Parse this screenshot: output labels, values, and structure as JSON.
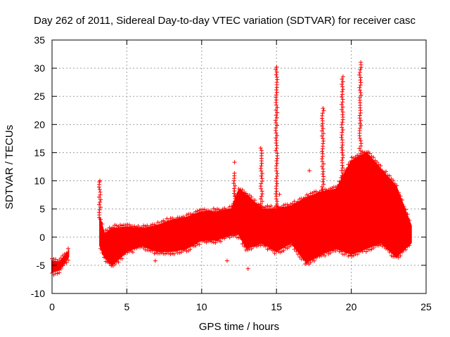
{
  "chart_data": {
    "type": "scatter",
    "title": "Day 262 of 2011, Sidereal Day-to-day VTEC variation (SDTVAR) for receiver casc",
    "xlabel": "GPS time / hours",
    "ylabel": "SDTVAR / TECUs",
    "xlim": [
      0,
      25
    ],
    "ylim": [
      -10,
      35
    ],
    "x_ticks": [
      0,
      5,
      10,
      15,
      20,
      25
    ],
    "y_ticks": [
      -10,
      -5,
      0,
      5,
      10,
      15,
      20,
      25,
      30,
      35
    ],
    "grid": true,
    "marker": "+",
    "series": [
      {
        "name": "SDTVAR",
        "color": "#ff0000",
        "band": [
          [
            0.0,
            -6.2,
            -4.2
          ],
          [
            0.5,
            -5.8,
            -4.5
          ],
          [
            1.1,
            -3.5,
            -2.5
          ],
          [
            3.2,
            -1.5,
            3.5
          ],
          [
            3.5,
            -3.5,
            0.5
          ],
          [
            4.0,
            -5.0,
            1.5
          ],
          [
            5.0,
            -2.5,
            1.8
          ],
          [
            6.0,
            -1.5,
            1.5
          ],
          [
            7.0,
            -2.5,
            2.0
          ],
          [
            8.0,
            -2.5,
            3.0
          ],
          [
            9.0,
            -2.0,
            3.5
          ],
          [
            10.0,
            -0.5,
            4.5
          ],
          [
            11.0,
            -0.5,
            4.5
          ],
          [
            12.0,
            0.5,
            5.0
          ],
          [
            12.5,
            0.5,
            8.5
          ],
          [
            13.0,
            -2.0,
            7.5
          ],
          [
            14.0,
            -1.0,
            5.0
          ],
          [
            15.0,
            -2.5,
            5.0
          ],
          [
            16.0,
            -1.0,
            5.5
          ],
          [
            17.0,
            -4.5,
            7.0
          ],
          [
            18.0,
            -3.0,
            8.0
          ],
          [
            19.0,
            -2.0,
            8.5
          ],
          [
            20.0,
            -3.0,
            13.5
          ],
          [
            21.0,
            -2.0,
            15.0
          ],
          [
            22.0,
            -1.0,
            12.0
          ],
          [
            23.0,
            -3.5,
            9.0
          ],
          [
            24.0,
            -1.0,
            2.0
          ]
        ],
        "spikes": [
          [
            3.2,
            10.0
          ],
          [
            12.2,
            11.5
          ],
          [
            14.0,
            15.8
          ],
          [
            15.0,
            30.5
          ],
          [
            18.1,
            23.3
          ],
          [
            19.4,
            28.5
          ],
          [
            20.6,
            31.2
          ]
        ],
        "outliers": [
          [
            3.2,
            10.0
          ],
          [
            3.4,
            -1.3
          ],
          [
            6.9,
            -4.2
          ],
          [
            11.7,
            -4.2
          ],
          [
            12.2,
            13.3
          ],
          [
            13.1,
            -5.6
          ],
          [
            17.2,
            11.8
          ],
          [
            15.2,
            7.6
          ]
        ]
      }
    ]
  }
}
